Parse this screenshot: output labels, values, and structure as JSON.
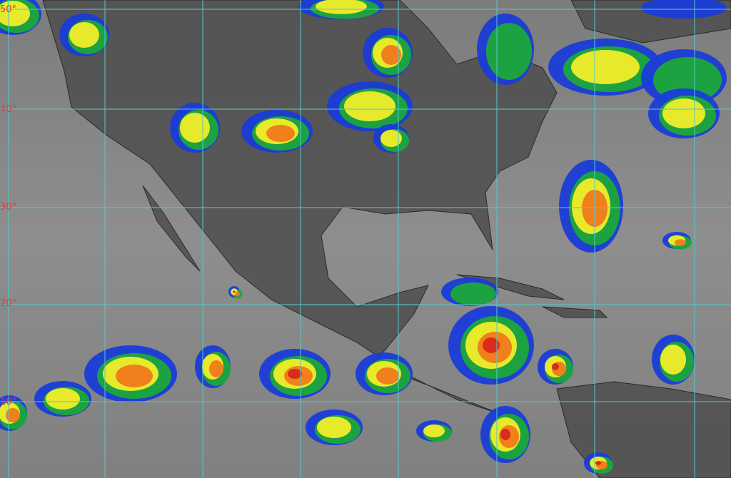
{
  "map": {
    "type": "infrared satellite imagery",
    "grid_color": "#58c8c8",
    "label_color": "#e23b3b",
    "latitude_labels": [
      "50°",
      "40°",
      "30°",
      "20°",
      "10°"
    ],
    "colors": {
      "ocean": "#8a8a8a",
      "land": "#4e4e4e",
      "cloud_cold_1": "#1a3cd8",
      "cloud_cold_2": "#1ea83a",
      "cloud_cold_3": "#f2ee2a",
      "cloud_cold_4": "#f07a1a",
      "cloud_cold_5": "#d8261e"
    }
  }
}
